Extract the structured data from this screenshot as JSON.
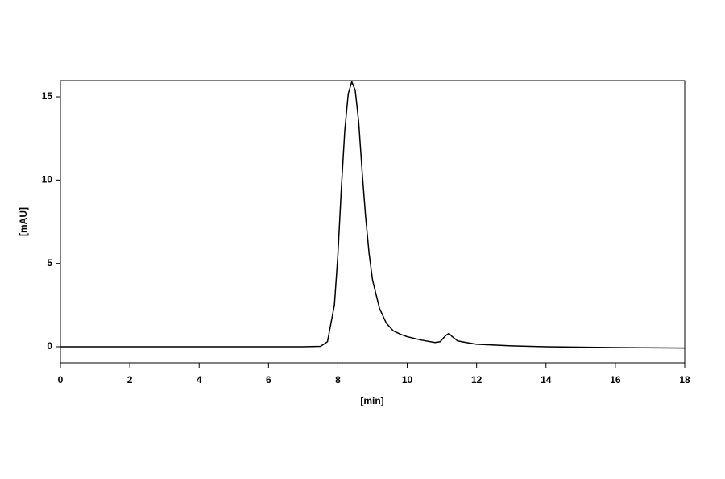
{
  "chart_data": {
    "type": "line",
    "x_label": "[min]",
    "y_label": "[mAU]",
    "x": [
      0,
      7,
      7.5,
      7.7,
      7.9,
      8.0,
      8.1,
      8.2,
      8.3,
      8.4,
      8.5,
      8.6,
      8.7,
      8.8,
      8.9,
      9.0,
      9.2,
      9.4,
      9.6,
      9.8,
      10.0,
      10.4,
      10.8,
      10.95,
      11.1,
      11.2,
      11.3,
      11.45,
      11.7,
      12,
      13,
      14,
      16,
      18
    ],
    "series": [
      {
        "color": "#000000",
        "values": [
          0,
          0,
          0.02,
          0.3,
          2.5,
          5.5,
          9.5,
          13,
          15.2,
          15.9,
          15.4,
          13.5,
          10.5,
          7.8,
          5.6,
          4.0,
          2.3,
          1.4,
          0.95,
          0.75,
          0.6,
          0.4,
          0.25,
          0.3,
          0.65,
          0.8,
          0.6,
          0.35,
          0.25,
          0.15,
          0.05,
          0,
          -0.05,
          -0.08
        ]
      }
    ],
    "xlim": [
      0,
      18
    ],
    "xticks": [
      0,
      2,
      4,
      6,
      8,
      10,
      12,
      14,
      16,
      18
    ],
    "ylim": [
      -0.97,
      15.97
    ],
    "yticks": [
      0,
      5,
      10,
      15
    ]
  }
}
